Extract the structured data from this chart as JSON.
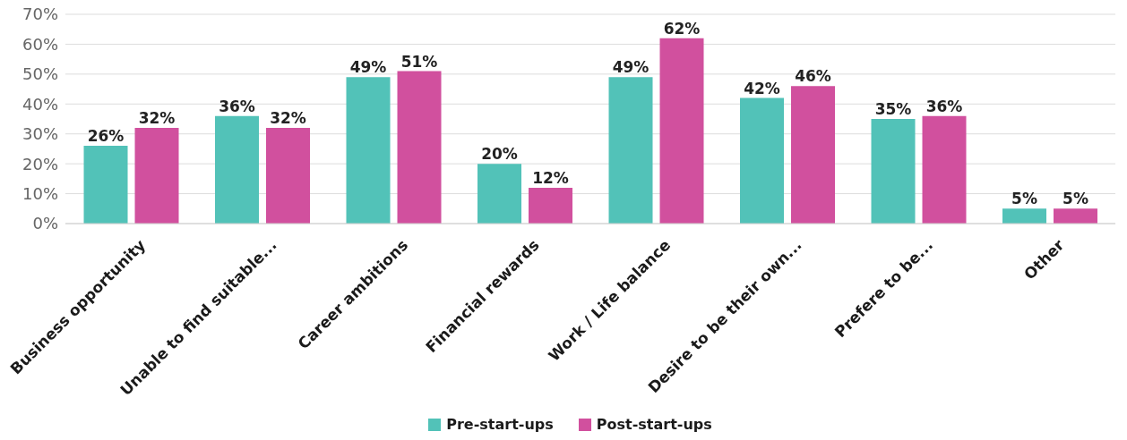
{
  "chart_data": {
    "type": "bar",
    "categories": [
      "Business opportunity",
      "Unable to find suitable...",
      "Career ambitions",
      "Financial rewards",
      "Work / Life balance",
      "Desire to be their own...",
      "Prefere to be...",
      "Other"
    ],
    "series": [
      {
        "name": "Pre-start-ups",
        "color": "#52c2b8",
        "values": [
          26,
          36,
          49,
          20,
          49,
          42,
          35,
          5
        ],
        "value_labels": [
          "26%",
          "36%",
          "49%",
          "20%",
          "49%",
          "42%",
          "35%",
          "5%"
        ]
      },
      {
        "name": "Post-start-ups",
        "color": "#d1509e",
        "values": [
          32,
          32,
          51,
          12,
          62,
          46,
          36,
          5
        ],
        "value_labels": [
          "32%",
          "32%",
          "51%",
          "12%",
          "62%",
          "46%",
          "36%",
          "5%"
        ]
      }
    ],
    "ylim": [
      0,
      70
    ],
    "yticks": [
      {
        "value": 0,
        "label": "0%"
      },
      {
        "value": 10,
        "label": "10%"
      },
      {
        "value": 20,
        "label": "20%"
      },
      {
        "value": 30,
        "label": "30%"
      },
      {
        "value": 40,
        "label": "40%"
      },
      {
        "value": 50,
        "label": "50%"
      },
      {
        "value": 60,
        "label": "60%"
      },
      {
        "value": 70,
        "label": "70%"
      }
    ],
    "grid": "y",
    "legend": "bottom"
  }
}
